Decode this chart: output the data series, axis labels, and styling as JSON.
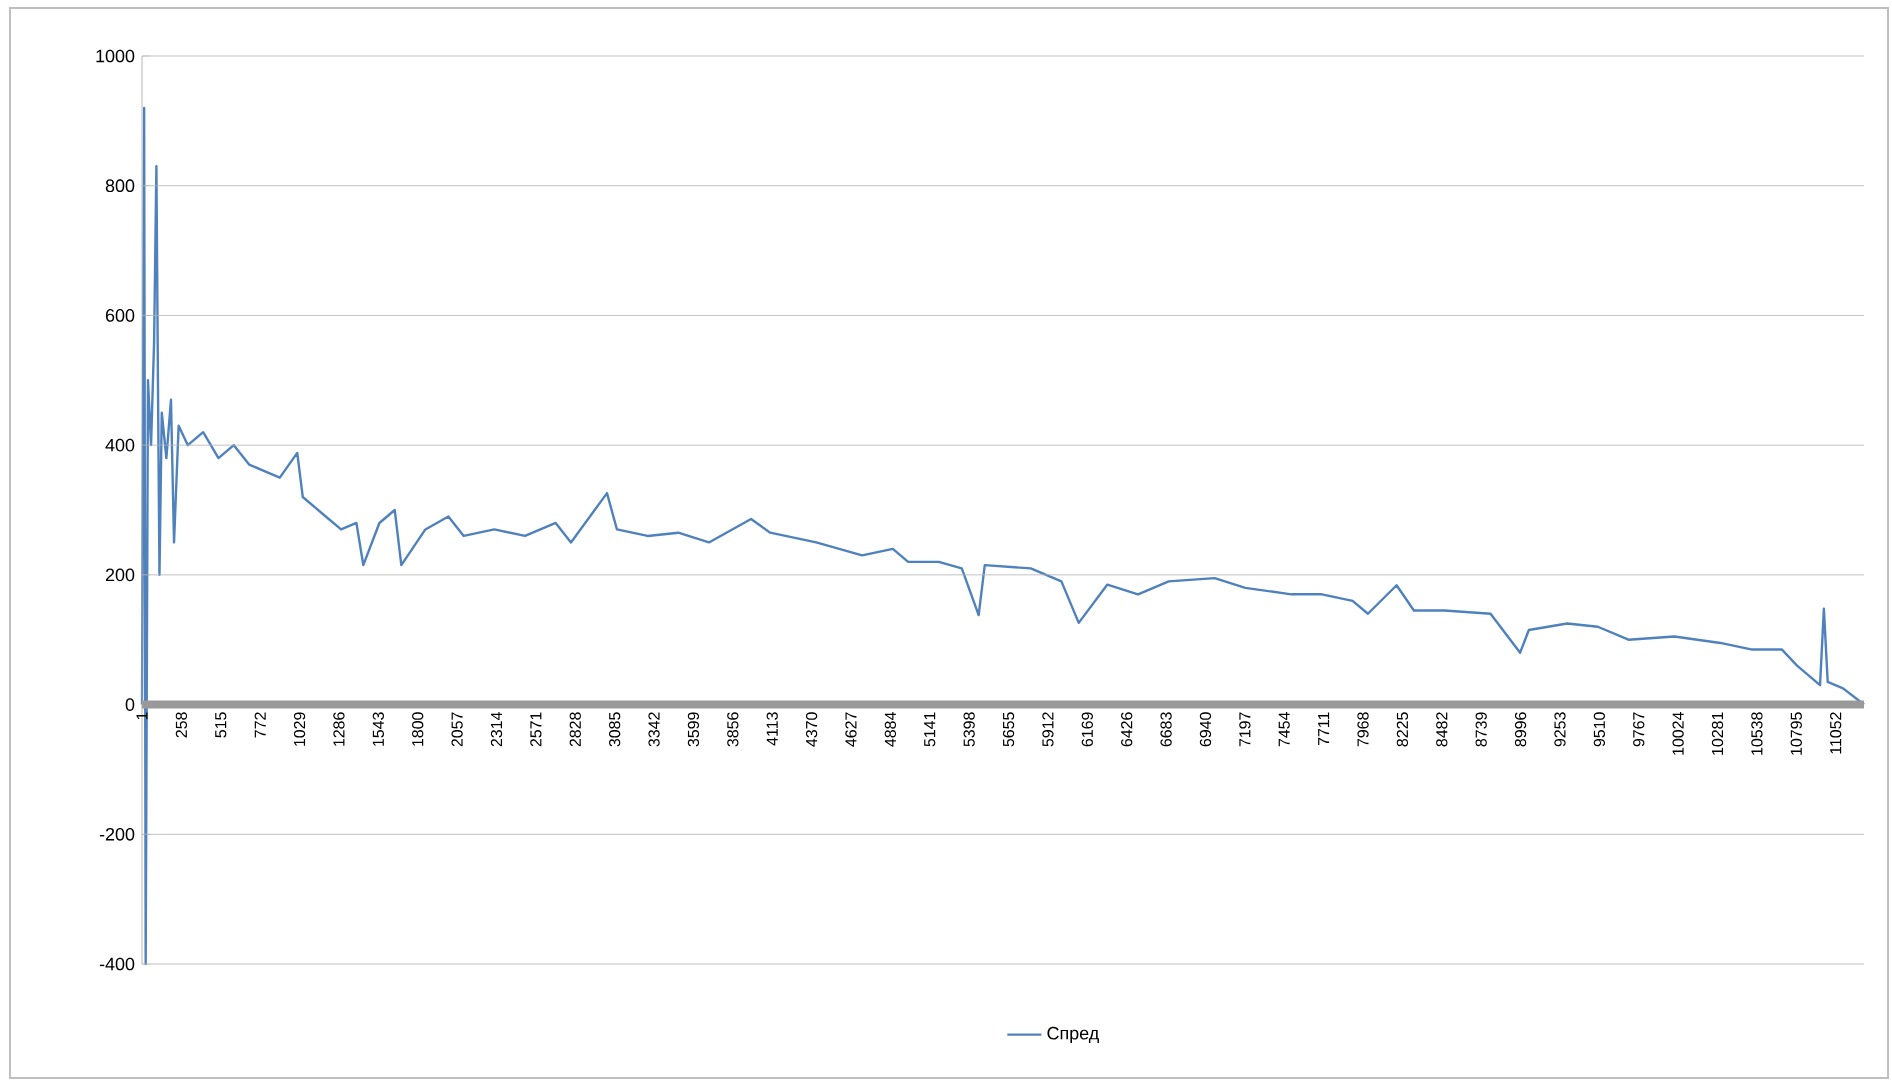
{
  "chart_data": {
    "type": "line",
    "x": [
      1,
      15,
      25,
      40,
      60,
      80,
      95,
      105,
      115,
      130,
      160,
      190,
      210,
      240,
      300,
      400,
      500,
      600,
      700,
      800,
      900,
      1014,
      1050,
      1200,
      1300,
      1400,
      1445,
      1550,
      1650,
      1693,
      1850,
      2000,
      2100,
      2300,
      2500,
      2700,
      2800,
      3035,
      3100,
      3300,
      3500,
      3700,
      3975,
      4100,
      4400,
      4700,
      4900,
      5000,
      5200,
      5350,
      5460,
      5500,
      5800,
      6000,
      6113,
      6300,
      6500,
      6700,
      7000,
      7200,
      7500,
      7700,
      7900,
      8000,
      8187,
      8300,
      8500,
      8800,
      8993,
      9050,
      9300,
      9500,
      9700,
      10000,
      10300,
      10500,
      10700,
      10800,
      10950,
      10975,
      11000,
      11100,
      11237
    ],
    "series": [
      {
        "name": "Спред",
        "color": "#4f81bd",
        "values": [
          0,
          920,
          -400,
          500,
          400,
          560,
          830,
          500,
          200,
          450,
          380,
          470,
          250,
          430,
          400,
          420,
          380,
          400,
          370,
          360,
          350,
          388,
          320,
          290,
          270,
          280,
          215,
          280,
          300,
          215,
          270,
          290,
          260,
          270,
          260,
          280,
          250,
          326,
          270,
          260,
          265,
          250,
          286,
          265,
          250,
          230,
          240,
          220,
          220,
          210,
          138,
          215,
          210,
          190,
          126,
          185,
          170,
          190,
          195,
          180,
          170,
          170,
          160,
          140,
          184,
          145,
          145,
          140,
          80,
          115,
          125,
          120,
          100,
          105,
          95,
          85,
          85,
          60,
          30,
          148,
          35,
          25,
          0
        ]
      }
    ],
    "xlim": [
      1,
      11237
    ],
    "ylim": [
      -400,
      1000
    ],
    "xticks": [
      1,
      258,
      515,
      772,
      1029,
      1286,
      1543,
      1800,
      2057,
      2314,
      2571,
      2828,
      3085,
      3342,
      3599,
      3856,
      4113,
      4370,
      4627,
      4884,
      5141,
      5398,
      5655,
      5912,
      6169,
      6426,
      6683,
      6940,
      7197,
      7454,
      7711,
      7968,
      8225,
      8482,
      8739,
      8996,
      9253,
      9510,
      9767,
      10024,
      10281,
      10538,
      10795,
      11052
    ],
    "yticks": [
      -400,
      -200,
      0,
      200,
      400,
      600,
      800,
      1000
    ],
    "grid": "y",
    "legend": "bottom"
  }
}
